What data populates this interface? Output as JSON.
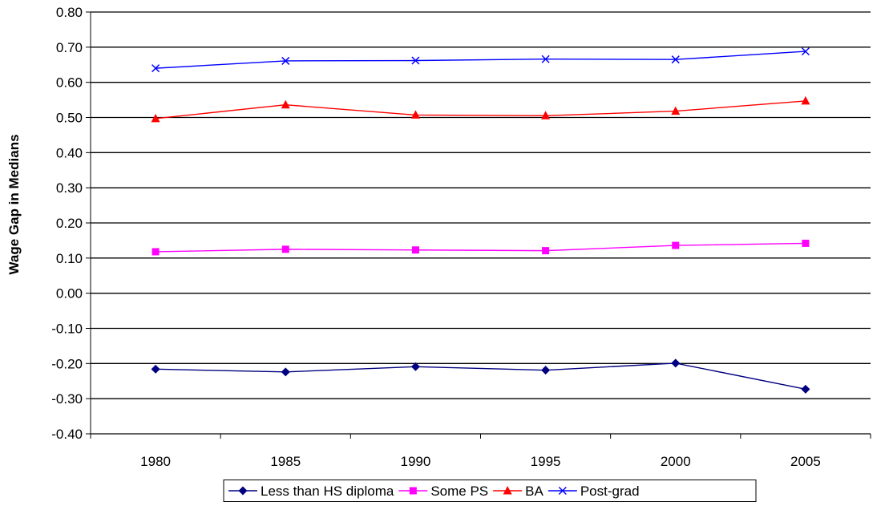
{
  "chart_data": {
    "type": "line",
    "title": "",
    "xlabel": "",
    "ylabel": "Wage Gap in Medians",
    "x": [
      "1980",
      "1985",
      "1990",
      "1995",
      "2000",
      "2005"
    ],
    "ylim": [
      -0.4,
      0.8
    ],
    "ytick_step": 0.1,
    "grid": true,
    "legend_position": "bottom",
    "series": [
      {
        "name": "Less than HS diploma",
        "color": "#000080",
        "marker": "diamond",
        "values": [
          -0.216,
          -0.224,
          -0.209,
          -0.219,
          -0.199,
          -0.273
        ]
      },
      {
        "name": "Some PS",
        "color": "#FF00FF",
        "marker": "square",
        "values": [
          0.118,
          0.125,
          0.123,
          0.121,
          0.136,
          0.142
        ]
      },
      {
        "name": "BA",
        "color": "#FF0000",
        "marker": "triangle",
        "values": [
          0.497,
          0.536,
          0.507,
          0.505,
          0.518,
          0.547
        ]
      },
      {
        "name": "Post-grad",
        "color": "#0000FF",
        "marker": "x",
        "values": [
          0.64,
          0.661,
          0.662,
          0.666,
          0.665,
          0.688
        ]
      }
    ]
  }
}
